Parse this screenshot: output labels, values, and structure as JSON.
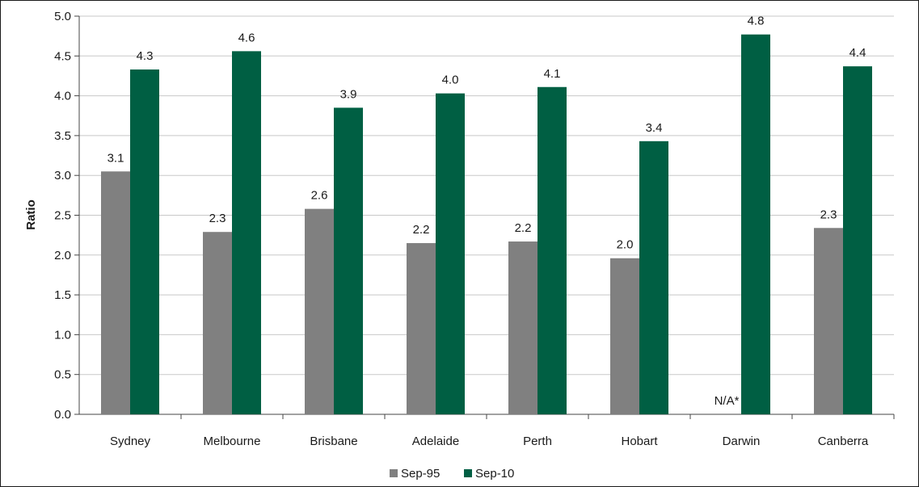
{
  "chart_data": {
    "type": "bar",
    "title": "",
    "xlabel": "",
    "ylabel": "Ratio",
    "ylim": [
      0,
      5
    ],
    "yticks": [
      "0.0",
      "0.5",
      "1.0",
      "1.5",
      "2.0",
      "2.5",
      "3.0",
      "3.5",
      "4.0",
      "4.5",
      "5.0"
    ],
    "grid": true,
    "legend_position": "bottom",
    "categories": [
      "Sydney",
      "Melbourne",
      "Brisbane",
      "Adelaide",
      "Perth",
      "Hobart",
      "Darwin",
      "Canberra"
    ],
    "series": [
      {
        "name": "Sep-95",
        "color": "#808080",
        "values": [
          3.05,
          2.29,
          2.58,
          2.15,
          2.17,
          1.96,
          null,
          2.34
        ],
        "labels": [
          "3.1",
          "2.3",
          "2.6",
          "2.2",
          "2.2",
          "2.0",
          "N/A*",
          "2.3"
        ]
      },
      {
        "name": "Sep-10",
        "color": "#005f43",
        "values": [
          4.33,
          4.56,
          3.85,
          4.03,
          4.11,
          3.43,
          4.77,
          4.37
        ],
        "labels": [
          "4.3",
          "4.6",
          "3.9",
          "4.0",
          "4.1",
          "3.4",
          "4.8",
          "4.4"
        ]
      }
    ],
    "gridline_color": "#c8c8c8"
  }
}
